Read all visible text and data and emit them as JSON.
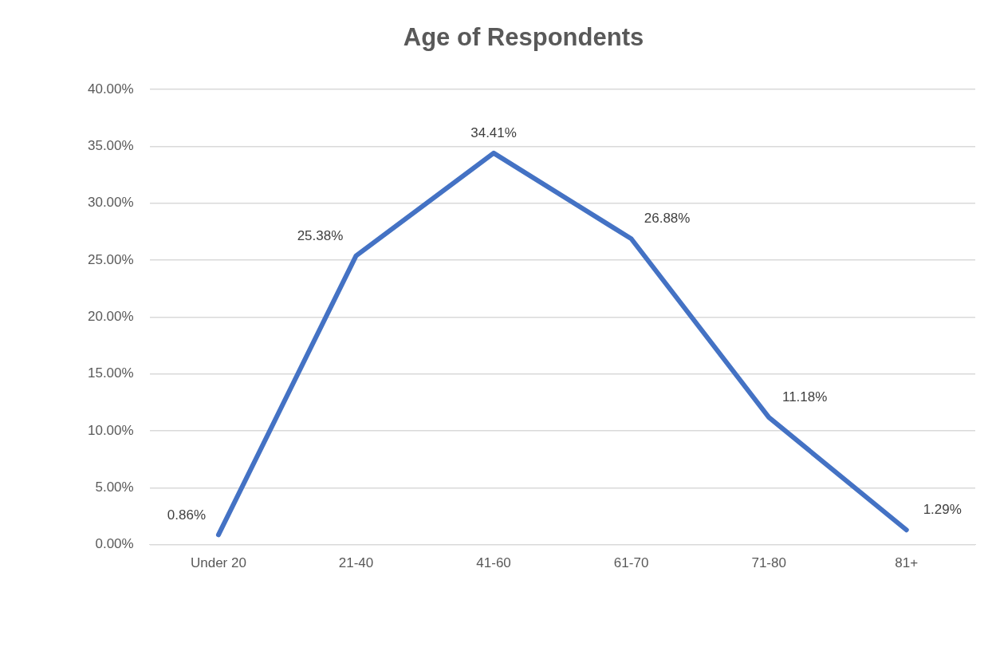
{
  "chart_data": {
    "type": "line",
    "title": "Age of Respondents",
    "categories": [
      "Under 20",
      "21-40",
      "41-60",
      "61-70",
      "71-80",
      "81+"
    ],
    "series": [
      {
        "color": "#4472c4",
        "values": [
          0.86,
          25.38,
          34.41,
          26.88,
          11.18,
          1.29
        ],
        "value_labels": [
          "0.86%",
          "25.38%",
          "34.41%",
          "26.88%",
          "11.18%",
          "1.29%"
        ]
      }
    ],
    "ylim": [
      0,
      40
    ],
    "yticks": [
      {
        "value": 0,
        "label": "0.00%"
      },
      {
        "value": 5,
        "label": "5.00%"
      },
      {
        "value": 10,
        "label": "10.00%"
      },
      {
        "value": 15,
        "label": "15.00%"
      },
      {
        "value": 20,
        "label": "20.00%"
      },
      {
        "value": 25,
        "label": "25.00%"
      },
      {
        "value": 30,
        "label": "30.00%"
      },
      {
        "value": 35,
        "label": "35.00%"
      },
      {
        "value": 40,
        "label": "40.00%"
      }
    ],
    "grid": "y",
    "legend": false,
    "marker": "none",
    "line_style": "solid"
  }
}
